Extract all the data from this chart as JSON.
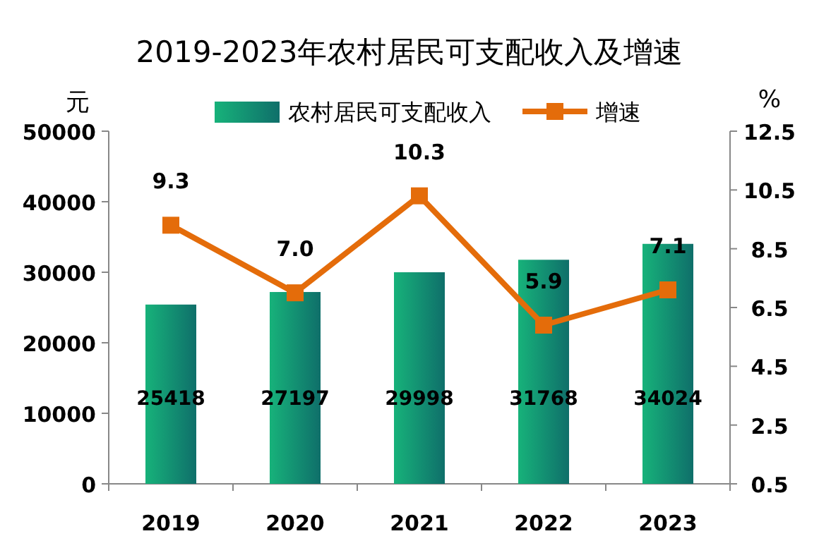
{
  "chart_data": {
    "type": "bar",
    "title": "2019-2023年农村居民可支配收入及增速",
    "ylabel": "元",
    "y2label": "%",
    "categories": [
      "2019",
      "2020",
      "2021",
      "2022",
      "2023"
    ],
    "series": [
      {
        "name": "农村居民可支配收入",
        "color": "#17b27a",
        "values": [
          25418,
          27197,
          29998,
          31768,
          34024
        ],
        "value_labels": [
          "25418",
          "27197",
          "29998",
          "31768",
          "34024"
        ]
      },
      {
        "name": "增速",
        "type": "line",
        "axis": "y2",
        "color": "#e46c0a",
        "marker": "square",
        "values": [
          9.3,
          7.0,
          10.3,
          5.9,
          7.1
        ],
        "value_labels": [
          "9.3",
          "7.0",
          "10.3",
          "5.9",
          "7.1"
        ]
      }
    ],
    "ylim": [
      0,
      50000
    ],
    "yticks": [
      0,
      10000,
      20000,
      30000,
      40000,
      50000
    ],
    "y2lim": [
      0.5,
      12.5
    ],
    "y2ticks": [
      0.5,
      2.5,
      4.5,
      6.5,
      8.5,
      10.5,
      12.5
    ],
    "legend": "top",
    "grid": false
  }
}
